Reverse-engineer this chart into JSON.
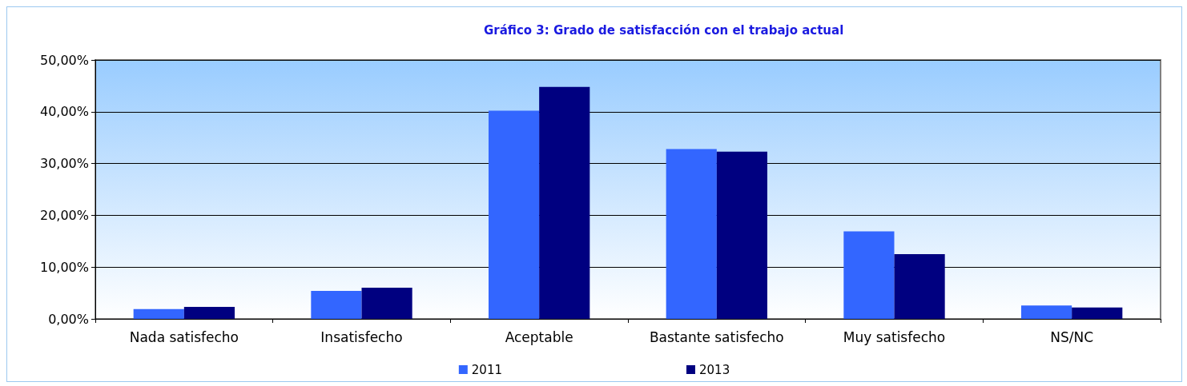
{
  "chart_data": {
    "type": "bar",
    "title": "Gráfico 3: Grado de satisfacción con el trabajo actual",
    "categories": [
      "Nada satisfecho",
      "Insatisfecho",
      "Aceptable",
      "Bastante satisfecho",
      "Muy satisfecho",
      "NS/NC"
    ],
    "series": [
      {
        "name": "2011",
        "color": "#3366ff",
        "values": [
          1.9,
          5.4,
          40.2,
          32.8,
          16.9,
          2.6
        ]
      },
      {
        "name": "2013",
        "color": "#000080",
        "values": [
          2.3,
          6.0,
          44.8,
          32.3,
          12.5,
          2.2
        ]
      }
    ],
    "ylim": [
      0,
      50
    ],
    "yticks": [
      {
        "value": 0,
        "label": "0,00%"
      },
      {
        "value": 10,
        "label": "10,00%"
      },
      {
        "value": 20,
        "label": "20,00%"
      },
      {
        "value": 30,
        "label": "30,00%"
      },
      {
        "value": 40,
        "label": "40,00%"
      },
      {
        "value": 50,
        "label": "50,00%"
      }
    ],
    "grid": "y",
    "legend": "bottom"
  }
}
